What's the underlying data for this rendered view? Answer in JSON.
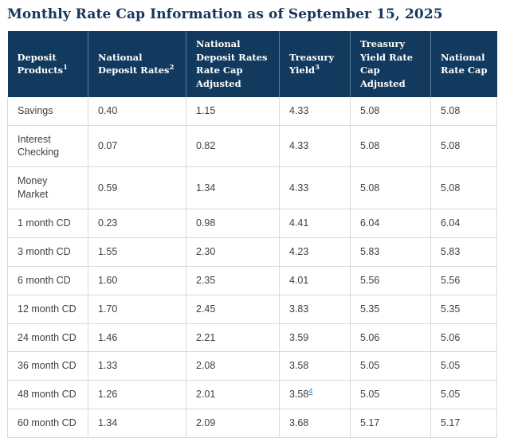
{
  "page": {
    "title": "Monthly Rate Cap Information as of September 15, 2025"
  },
  "table": {
    "headers": [
      {
        "label": "Deposit Products",
        "sup": "1"
      },
      {
        "label": "National Deposit Rates",
        "sup": "2"
      },
      {
        "lines": [
          "National Deposit Rates",
          "Rate Cap Adjusted"
        ]
      },
      {
        "label": "Treasury Yield",
        "sup": "3"
      },
      {
        "label": "Treasury Yield Rate Cap Adjusted"
      },
      {
        "label": "National Rate Cap"
      }
    ],
    "rows": [
      {
        "product": "Savings",
        "values": [
          "0.40",
          "1.15",
          "4.33",
          "5.08",
          "5.08"
        ]
      },
      {
        "product": "Interest Checking",
        "values": [
          "0.07",
          "0.82",
          "4.33",
          "5.08",
          "5.08"
        ]
      },
      {
        "product": "Money Market",
        "values": [
          "0.59",
          "1.34",
          "4.33",
          "5.08",
          "5.08"
        ]
      },
      {
        "product": "1 month CD",
        "values": [
          "0.23",
          "0.98",
          "4.41",
          "6.04",
          "6.04"
        ]
      },
      {
        "product": "3 month CD",
        "values": [
          "1.55",
          "2.30",
          "4.23",
          "5.83",
          "5.83"
        ]
      },
      {
        "product": "6 month CD",
        "values": [
          "1.60",
          "2.35",
          "4.01",
          "5.56",
          "5.56"
        ]
      },
      {
        "product": "12 month CD",
        "values": [
          "1.70",
          "2.45",
          "3.83",
          "5.35",
          "5.35"
        ]
      },
      {
        "product": "24 month CD",
        "values": [
          "1.46",
          "2.21",
          "3.59",
          "5.06",
          "5.06"
        ]
      },
      {
        "product": "36 month CD",
        "values": [
          "1.33",
          "2.08",
          "3.58",
          "5.05",
          "5.05"
        ]
      },
      {
        "product": "48 month CD",
        "values": [
          "1.26",
          "2.01",
          "3.58",
          "5.05",
          "5.05"
        ],
        "footnote": {
          "value_index": 2,
          "sup": "4"
        }
      },
      {
        "product": "60 month CD",
        "values": [
          "1.34",
          "2.09",
          "3.68",
          "5.17",
          "5.17"
        ]
      }
    ]
  },
  "colors": {
    "header_background": "#123A5E",
    "title_text": "#17365D",
    "body_text": "#3F3F3F",
    "grid_border": "#D9D9D9",
    "footnote_link": "#3F7FBF"
  }
}
